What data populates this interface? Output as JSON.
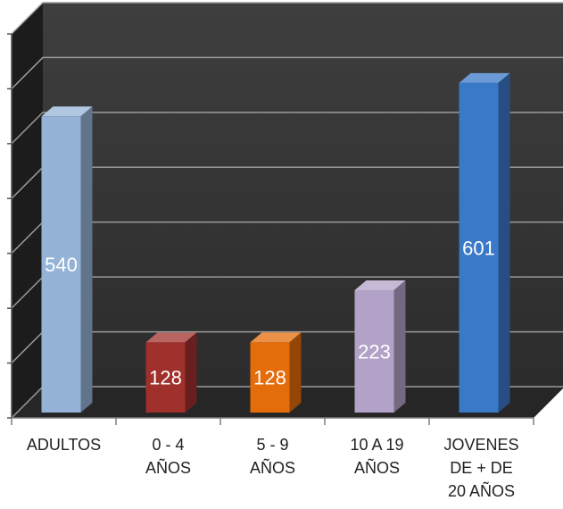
{
  "chart_data": {
    "type": "bar",
    "style": "3d",
    "categories": [
      "ADULTOS",
      "0 - 4\nAÑOS",
      "5 - 9\nAÑOS",
      "10 A 19\nAÑOS",
      "JOVENES\nDE + DE\n20 AÑOS"
    ],
    "values": [
      540,
      128,
      128,
      223,
      601
    ],
    "data_labels": [
      "540",
      "128",
      "128",
      "223",
      "601"
    ],
    "colors": [
      "#95b3d7",
      "#a0302c",
      "#e46c0a",
      "#b3a2c7",
      "#3a78c8"
    ],
    "ylim": [
      0,
      700
    ],
    "grid": true,
    "title": "",
    "xlabel": "",
    "ylabel": ""
  }
}
